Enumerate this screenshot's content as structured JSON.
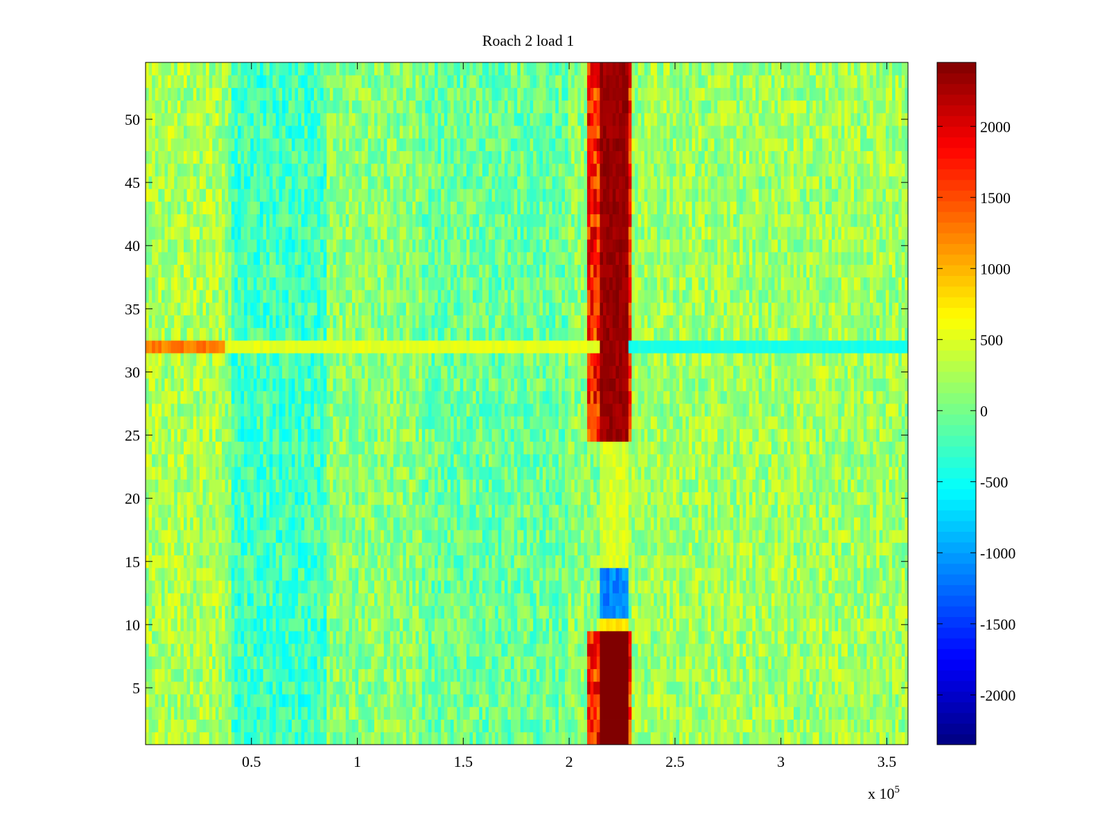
{
  "chart_data": {
    "type": "heatmap",
    "title": "Roach 2 load 1",
    "xlabel": "",
    "ylabel": "",
    "x_exponent_label": "x 10",
    "x_exponent": "5",
    "xlim": [
      0,
      360000
    ],
    "ylim": [
      0.5,
      54.5
    ],
    "x_ticks": [
      {
        "value": 50000,
        "label": "0.5"
      },
      {
        "value": 100000,
        "label": "1"
      },
      {
        "value": 150000,
        "label": "1.5"
      },
      {
        "value": 200000,
        "label": "2"
      },
      {
        "value": 250000,
        "label": "2.5"
      },
      {
        "value": 300000,
        "label": "3"
      },
      {
        "value": 350000,
        "label": "3.5"
      }
    ],
    "y_ticks": [
      {
        "value": 5,
        "label": "5"
      },
      {
        "value": 10,
        "label": "10"
      },
      {
        "value": 15,
        "label": "15"
      },
      {
        "value": 20,
        "label": "20"
      },
      {
        "value": 25,
        "label": "25"
      },
      {
        "value": 30,
        "label": "30"
      },
      {
        "value": 35,
        "label": "35"
      },
      {
        "value": 40,
        "label": "40"
      },
      {
        "value": 45,
        "label": "45"
      },
      {
        "value": 50,
        "label": "50"
      }
    ],
    "colorbar": {
      "colormap": "jet",
      "clim": [
        -2350,
        2450
      ],
      "ticks": [
        {
          "value": 2000,
          "label": "2000"
        },
        {
          "value": 1500,
          "label": "1500"
        },
        {
          "value": 1000,
          "label": "1000"
        },
        {
          "value": 500,
          "label": "500"
        },
        {
          "value": 0,
          "label": "0"
        },
        {
          "value": -500,
          "label": "-500"
        },
        {
          "value": -1000,
          "label": "-1000"
        },
        {
          "value": -1500,
          "label": "-1500"
        },
        {
          "value": -2000,
          "label": "-2000"
        }
      ]
    },
    "rows": 54,
    "x_bins": 240,
    "features": {
      "hot_column_x": [
        215000,
        228000
      ],
      "hot_value": 2450,
      "hot_rows_low": [
        1,
        9
      ],
      "warm_row": 10,
      "cold_rows": [
        11,
        14
      ],
      "hot_rows_high": [
        25,
        54
      ],
      "anomalous_row": 32,
      "cool_band_x": [
        40000,
        85000
      ],
      "baseline_value": 100
    }
  }
}
